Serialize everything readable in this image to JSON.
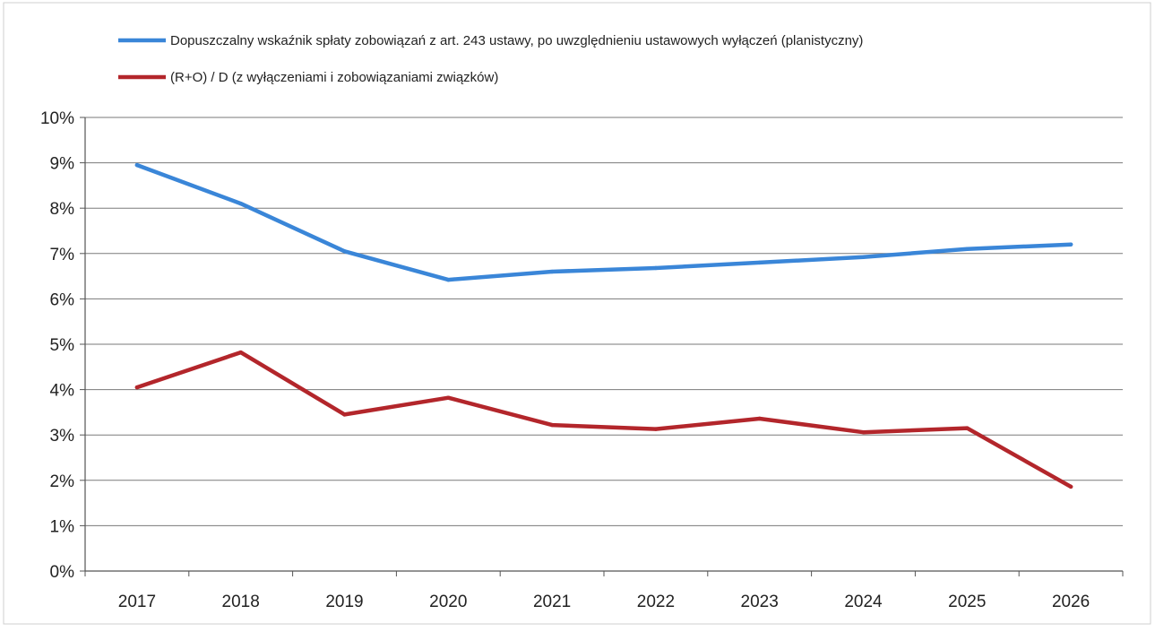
{
  "chart_data": {
    "type": "line",
    "categories": [
      "2017",
      "2018",
      "2019",
      "2020",
      "2021",
      "2022",
      "2023",
      "2024",
      "2025",
      "2026"
    ],
    "y_tick_labels": [
      "0%",
      "1%",
      "2%",
      "3%",
      "4%",
      "5%",
      "6%",
      "7%",
      "8%",
      "9%",
      "10%"
    ],
    "ylim": [
      0,
      10
    ],
    "y_unit": "%",
    "grid": true,
    "legend_position": "top",
    "series": [
      {
        "name": "Dopuszczalny wskaźnik spłaty zobowiązań z art. 243 ustawy, po uwzględnieniu ustawowych wyłączeń (planistyczny)",
        "color": "#3a86d8",
        "values": [
          8.95,
          8.1,
          7.05,
          6.42,
          6.6,
          6.68,
          6.8,
          6.92,
          7.1,
          7.2
        ]
      },
      {
        "name": "(R+O) / D (z wyłączeniami i zobowiązaniami związków)",
        "color": "#b3262b",
        "values": [
          4.05,
          4.82,
          3.45,
          3.82,
          3.22,
          3.13,
          3.36,
          3.06,
          3.15,
          1.86
        ]
      }
    ]
  }
}
